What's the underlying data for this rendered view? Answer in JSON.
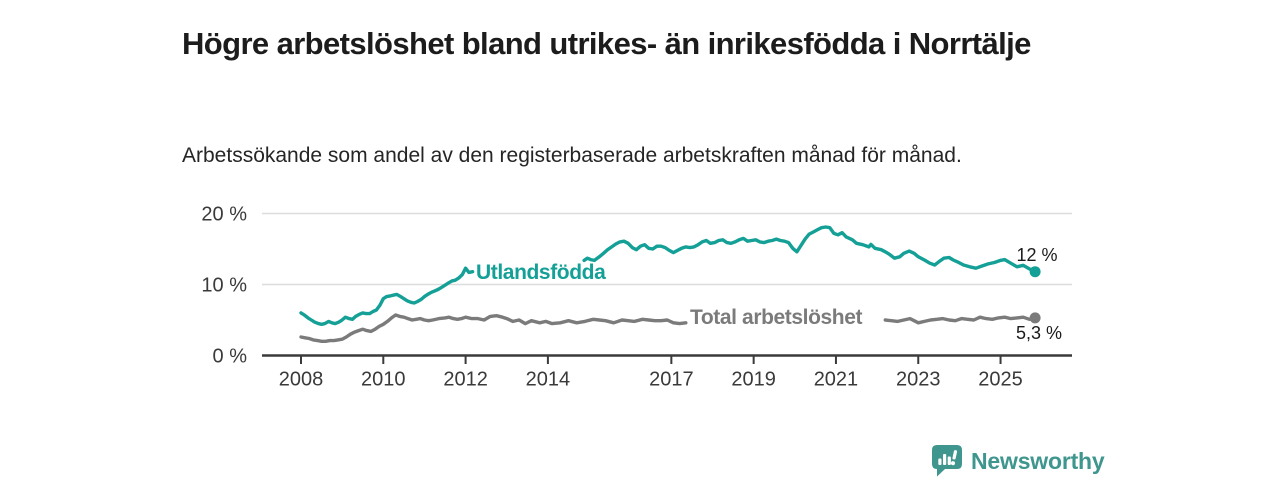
{
  "chart_data": {
    "type": "line",
    "title": "Högre arbetslöshet bland utrikes- än inrikesfödda i Norrtälje",
    "subtitle": "Arbetssökande som andel av den registerbaserade arbetskraften månad för månad.",
    "grid": "horizontal-only",
    "legend": "inline-labels-on-lines",
    "x_axis": {
      "ticks": [
        2008,
        2010,
        2012,
        2014,
        2017,
        2019,
        2021,
        2023,
        2025
      ],
      "labels": [
        "2008",
        "2010",
        "2012",
        "2014",
        "2017",
        "2019",
        "2021",
        "2023",
        "2025"
      ],
      "range_years": [
        2007.05,
        2026.75
      ]
    },
    "y_axis": {
      "ticks": [
        0,
        10,
        20
      ],
      "labels": [
        "0 %",
        "10 %",
        "20 %"
      ],
      "range": [
        0,
        21.7
      ],
      "unit": "%"
    },
    "series": [
      {
        "name": "Utlandsfödda",
        "color": "#14a096",
        "end_dot": true,
        "end_label": "12 %",
        "end_value_pct": 11.8,
        "note": "line interrupted by its inline label between 2012.2 and 2014.9",
        "segments": [
          [
            [
              2008.0,
              6.0
            ],
            [
              2008.08,
              5.7
            ],
            [
              2008.17,
              5.3
            ],
            [
              2008.25,
              5.0
            ],
            [
              2008.33,
              4.7
            ],
            [
              2008.42,
              4.5
            ],
            [
              2008.5,
              4.4
            ],
            [
              2008.58,
              4.5
            ],
            [
              2008.67,
              4.8
            ],
            [
              2008.75,
              4.6
            ],
            [
              2008.83,
              4.5
            ],
            [
              2008.92,
              4.7
            ],
            [
              2009.0,
              5.0
            ],
            [
              2009.08,
              5.4
            ],
            [
              2009.17,
              5.2
            ],
            [
              2009.25,
              5.1
            ],
            [
              2009.33,
              5.5
            ],
            [
              2009.42,
              5.8
            ],
            [
              2009.5,
              6.0
            ],
            [
              2009.58,
              5.9
            ],
            [
              2009.67,
              5.9
            ],
            [
              2009.75,
              6.2
            ],
            [
              2009.83,
              6.4
            ],
            [
              2009.92,
              7.1
            ],
            [
              2010.0,
              8.0
            ],
            [
              2010.08,
              8.3
            ],
            [
              2010.17,
              8.4
            ],
            [
              2010.25,
              8.5
            ],
            [
              2010.33,
              8.6
            ],
            [
              2010.42,
              8.3
            ],
            [
              2010.5,
              8.0
            ],
            [
              2010.58,
              7.7
            ],
            [
              2010.67,
              7.5
            ],
            [
              2010.75,
              7.4
            ],
            [
              2010.83,
              7.6
            ],
            [
              2010.92,
              7.9
            ],
            [
              2011.0,
              8.3
            ],
            [
              2011.08,
              8.6
            ],
            [
              2011.17,
              8.9
            ],
            [
              2011.25,
              9.1
            ],
            [
              2011.33,
              9.3
            ],
            [
              2011.42,
              9.6
            ],
            [
              2011.5,
              9.9
            ],
            [
              2011.58,
              10.2
            ],
            [
              2011.67,
              10.5
            ],
            [
              2011.75,
              10.6
            ],
            [
              2011.83,
              10.9
            ],
            [
              2011.92,
              11.4
            ],
            [
              2012.0,
              12.3
            ],
            [
              2012.08,
              11.7
            ],
            [
              2012.17,
              11.8
            ]
          ],
          [
            [
              2014.88,
              13.4
            ],
            [
              2014.96,
              13.7
            ],
            [
              2015.04,
              13.5
            ],
            [
              2015.13,
              13.4
            ],
            [
              2015.25,
              13.9
            ],
            [
              2015.35,
              14.4
            ],
            [
              2015.45,
              14.9
            ],
            [
              2015.55,
              15.3
            ],
            [
              2015.65,
              15.7
            ],
            [
              2015.75,
              16.0
            ],
            [
              2015.85,
              16.1
            ],
            [
              2015.95,
              15.8
            ],
            [
              2016.05,
              15.2
            ],
            [
              2016.15,
              14.9
            ],
            [
              2016.25,
              15.4
            ],
            [
              2016.35,
              15.6
            ],
            [
              2016.45,
              15.1
            ],
            [
              2016.55,
              15.0
            ],
            [
              2016.65,
              15.4
            ],
            [
              2016.75,
              15.4
            ],
            [
              2016.85,
              15.2
            ],
            [
              2016.95,
              14.8
            ],
            [
              2017.05,
              14.5
            ],
            [
              2017.15,
              14.8
            ],
            [
              2017.25,
              15.1
            ],
            [
              2017.35,
              15.3
            ],
            [
              2017.45,
              15.2
            ],
            [
              2017.55,
              15.3
            ],
            [
              2017.65,
              15.6
            ],
            [
              2017.75,
              16.0
            ],
            [
              2017.85,
              16.2
            ],
            [
              2017.95,
              15.8
            ],
            [
              2018.05,
              15.9
            ],
            [
              2018.15,
              16.2
            ],
            [
              2018.25,
              16.3
            ],
            [
              2018.35,
              15.9
            ],
            [
              2018.45,
              15.8
            ],
            [
              2018.55,
              16.0
            ],
            [
              2018.65,
              16.3
            ],
            [
              2018.75,
              16.5
            ],
            [
              2018.85,
              16.1
            ],
            [
              2018.95,
              16.2
            ],
            [
              2019.05,
              16.3
            ],
            [
              2019.15,
              16.0
            ],
            [
              2019.25,
              15.9
            ],
            [
              2019.35,
              16.1
            ],
            [
              2019.45,
              16.2
            ],
            [
              2019.55,
              16.4
            ],
            [
              2019.65,
              16.2
            ],
            [
              2019.75,
              16.1
            ],
            [
              2019.85,
              15.9
            ],
            [
              2019.95,
              15.1
            ],
            [
              2020.05,
              14.6
            ],
            [
              2020.15,
              15.5
            ],
            [
              2020.25,
              16.4
            ],
            [
              2020.35,
              17.1
            ],
            [
              2020.45,
              17.4
            ],
            [
              2020.55,
              17.7
            ],
            [
              2020.65,
              18.0
            ],
            [
              2020.75,
              18.1
            ],
            [
              2020.85,
              18.0
            ],
            [
              2020.95,
              17.2
            ],
            [
              2021.05,
              17.0
            ],
            [
              2021.15,
              17.3
            ],
            [
              2021.25,
              16.7
            ],
            [
              2021.4,
              16.3
            ],
            [
              2021.5,
              15.8
            ],
            [
              2021.65,
              15.6
            ],
            [
              2021.8,
              15.3
            ],
            [
              2021.85,
              15.65
            ],
            [
              2021.95,
              15.1
            ],
            [
              2022.1,
              14.9
            ],
            [
              2022.2,
              14.6
            ],
            [
              2022.3,
              14.25
            ],
            [
              2022.42,
              13.7
            ],
            [
              2022.55,
              13.9
            ],
            [
              2022.65,
              14.4
            ],
            [
              2022.78,
              14.7
            ],
            [
              2022.9,
              14.4
            ],
            [
              2023.0,
              13.9
            ],
            [
              2023.15,
              13.45
            ],
            [
              2023.28,
              13.0
            ],
            [
              2023.4,
              12.75
            ],
            [
              2023.5,
              13.2
            ],
            [
              2023.62,
              13.7
            ],
            [
              2023.75,
              13.8
            ],
            [
              2023.85,
              13.45
            ],
            [
              2023.95,
              13.2
            ],
            [
              2024.1,
              12.75
            ],
            [
              2024.25,
              12.5
            ],
            [
              2024.4,
              12.3
            ],
            [
              2024.55,
              12.6
            ],
            [
              2024.7,
              12.9
            ],
            [
              2024.85,
              13.1
            ],
            [
              2025.0,
              13.4
            ],
            [
              2025.1,
              13.5
            ],
            [
              2025.25,
              13.0
            ],
            [
              2025.4,
              12.5
            ],
            [
              2025.55,
              12.7
            ],
            [
              2025.7,
              12.2
            ],
            [
              2025.84,
              11.8
            ]
          ]
        ]
      },
      {
        "name": "Total arbetslöshet",
        "color": "#7b7b7b",
        "end_dot": true,
        "end_label": "5,3 %",
        "end_value_pct": 5.3,
        "note": "line interrupted by its inline label between 2017.4 and 2022.2",
        "segments": [
          [
            [
              2008.0,
              2.6
            ],
            [
              2008.1,
              2.5
            ],
            [
              2008.2,
              2.4
            ],
            [
              2008.3,
              2.2
            ],
            [
              2008.4,
              2.1
            ],
            [
              2008.5,
              2.0
            ],
            [
              2008.6,
              2.0
            ],
            [
              2008.7,
              2.1
            ],
            [
              2008.8,
              2.1
            ],
            [
              2008.9,
              2.2
            ],
            [
              2009.0,
              2.3
            ],
            [
              2009.1,
              2.6
            ],
            [
              2009.2,
              3.0
            ],
            [
              2009.3,
              3.3
            ],
            [
              2009.4,
              3.5
            ],
            [
              2009.5,
              3.7
            ],
            [
              2009.6,
              3.5
            ],
            [
              2009.7,
              3.4
            ],
            [
              2009.8,
              3.7
            ],
            [
              2009.9,
              4.1
            ],
            [
              2010.0,
              4.4
            ],
            [
              2010.1,
              4.8
            ],
            [
              2010.2,
              5.3
            ],
            [
              2010.3,
              5.7
            ],
            [
              2010.4,
              5.5
            ],
            [
              2010.5,
              5.4
            ],
            [
              2010.6,
              5.2
            ],
            [
              2010.7,
              5.0
            ],
            [
              2010.8,
              5.1
            ],
            [
              2010.9,
              5.2
            ],
            [
              2011.0,
              5.0
            ],
            [
              2011.1,
              4.9
            ],
            [
              2011.2,
              5.0
            ],
            [
              2011.35,
              5.2
            ],
            [
              2011.5,
              5.3
            ],
            [
              2011.6,
              5.4
            ],
            [
              2011.7,
              5.2
            ],
            [
              2011.8,
              5.1
            ],
            [
              2011.9,
              5.2
            ],
            [
              2012.0,
              5.4
            ],
            [
              2012.15,
              5.2
            ],
            [
              2012.3,
              5.2
            ],
            [
              2012.45,
              5.0
            ],
            [
              2012.6,
              5.5
            ],
            [
              2012.75,
              5.6
            ],
            [
              2012.9,
              5.4
            ],
            [
              2013.0,
              5.2
            ],
            [
              2013.15,
              4.8
            ],
            [
              2013.3,
              5.0
            ],
            [
              2013.45,
              4.5
            ],
            [
              2013.6,
              4.9
            ],
            [
              2013.8,
              4.6
            ],
            [
              2013.95,
              4.8
            ],
            [
              2014.1,
              4.5
            ],
            [
              2014.3,
              4.6
            ],
            [
              2014.5,
              4.9
            ],
            [
              2014.7,
              4.6
            ],
            [
              2014.9,
              4.8
            ],
            [
              2015.1,
              5.1
            ],
            [
              2015.25,
              5.0
            ],
            [
              2015.4,
              4.9
            ],
            [
              2015.6,
              4.6
            ],
            [
              2015.8,
              5.0
            ],
            [
              2015.95,
              4.9
            ],
            [
              2016.1,
              4.8
            ],
            [
              2016.3,
              5.1
            ],
            [
              2016.45,
              5.0
            ],
            [
              2016.6,
              4.9
            ],
            [
              2016.75,
              4.9
            ],
            [
              2016.9,
              5.0
            ],
            [
              2017.05,
              4.6
            ],
            [
              2017.2,
              4.5
            ],
            [
              2017.35,
              4.6
            ]
          ],
          [
            [
              2022.2,
              5.0
            ],
            [
              2022.35,
              4.9
            ],
            [
              2022.5,
              4.8
            ],
            [
              2022.65,
              5.0
            ],
            [
              2022.8,
              5.2
            ],
            [
              2022.9,
              4.9
            ],
            [
              2023.0,
              4.6
            ],
            [
              2023.15,
              4.8
            ],
            [
              2023.3,
              5.0
            ],
            [
              2023.45,
              5.1
            ],
            [
              2023.6,
              5.2
            ],
            [
              2023.75,
              5.0
            ],
            [
              2023.9,
              4.9
            ],
            [
              2024.05,
              5.2
            ],
            [
              2024.2,
              5.1
            ],
            [
              2024.35,
              5.0
            ],
            [
              2024.5,
              5.4
            ],
            [
              2024.65,
              5.2
            ],
            [
              2024.8,
              5.1
            ],
            [
              2024.95,
              5.3
            ],
            [
              2025.1,
              5.4
            ],
            [
              2025.25,
              5.2
            ],
            [
              2025.4,
              5.3
            ],
            [
              2025.55,
              5.4
            ],
            [
              2025.7,
              5.1
            ],
            [
              2025.84,
              5.3
            ]
          ]
        ]
      }
    ]
  },
  "branding": {
    "name": "Newsworthy",
    "color": "#3f968e",
    "icon": "bar-chart-speech-bubble-icon"
  },
  "colors": {
    "background": "#ffffff",
    "title": "#1c1c1c",
    "subtitle": "#252525",
    "axis": "#3a3a3a",
    "grid": "#dcdcdc",
    "value_labels": "#1a1a1a"
  }
}
